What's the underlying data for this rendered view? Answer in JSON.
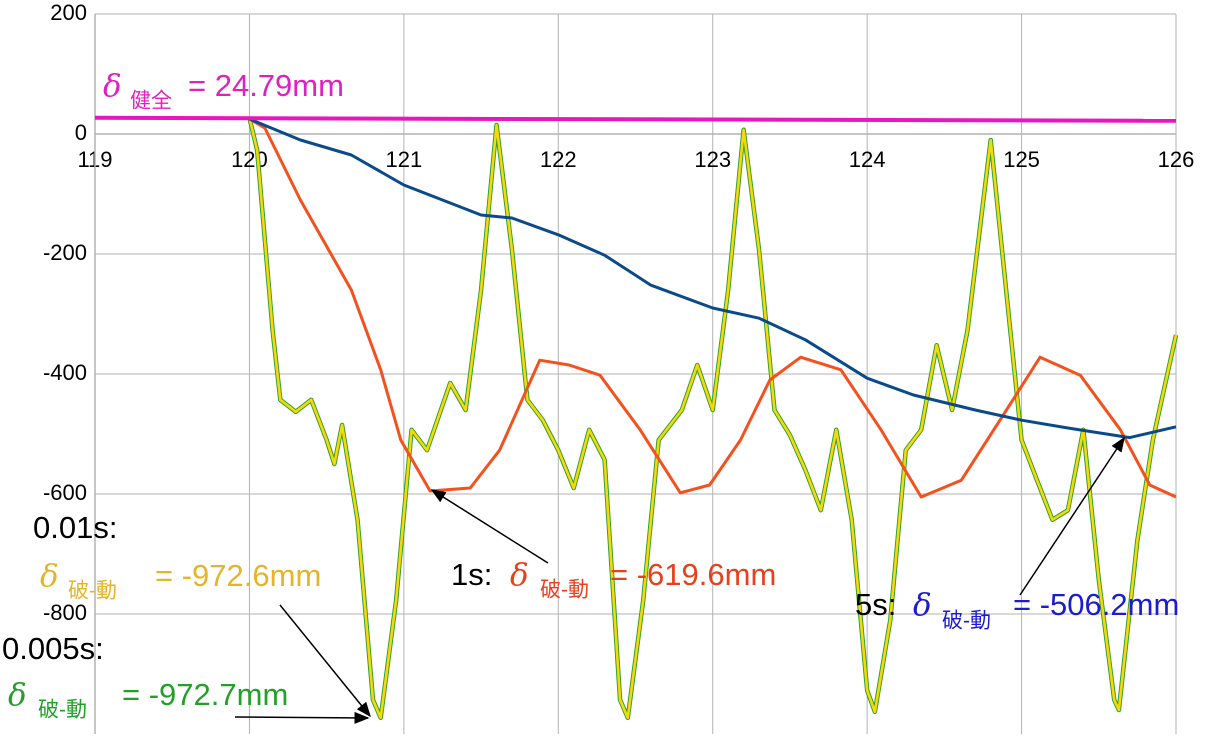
{
  "chart_data": {
    "type": "line",
    "xlim": [
      119,
      126
    ],
    "xticks": [
      119,
      120,
      121,
      122,
      123,
      124,
      125,
      126
    ],
    "ylim": [
      -1000,
      200
    ],
    "yticks": [
      200,
      0,
      -200,
      -400,
      -600,
      -800
    ],
    "grid": true,
    "series": [
      {
        "name": "0.005s:",
        "color": "#2e9e2e",
        "text_color": "#22a02a",
        "annotation": {
          "symbol": "δ",
          "subscript": "破-動",
          "text": "= -972.7mm"
        },
        "x": [
          120,
          120.05,
          120.15,
          120.2,
          120.3,
          120.4,
          120.5,
          120.55,
          120.6,
          120.7,
          120.8,
          120.85,
          120.95,
          121.05,
          121.15,
          121.3,
          121.4,
          121.5,
          121.6,
          121.7,
          121.8,
          121.9,
          122,
          122.1,
          122.2,
          122.3,
          122.4,
          122.45,
          122.55,
          122.65,
          122.8,
          122.9,
          123,
          123.1,
          123.2,
          123.3,
          123.4,
          123.5,
          123.6,
          123.7,
          123.8,
          123.9,
          124,
          124.05,
          124.15,
          124.25,
          124.35,
          124.45,
          124.55,
          124.65,
          124.8,
          124.9,
          125,
          125.1,
          125.2,
          125.3,
          125.4,
          125.5,
          125.6,
          125.63,
          125.75,
          125.85,
          126
        ],
        "values": [
          27,
          -27,
          -327,
          -443,
          -463,
          -443,
          -510,
          -550,
          -485,
          -643,
          -943,
          -973,
          -777,
          -493,
          -527,
          -415,
          -460,
          -260,
          15,
          -193,
          -443,
          -477,
          -527,
          -590,
          -493,
          -543,
          -943,
          -973,
          -777,
          -510,
          -460,
          -385,
          -460,
          -260,
          7,
          -193,
          -460,
          -502,
          -560,
          -627,
          -493,
          -643,
          -927,
          -963,
          -810,
          -527,
          -493,
          -352,
          -460,
          -327,
          -10,
          -260,
          -510,
          -577,
          -643,
          -627,
          -493,
          -743,
          -943,
          -960,
          -677,
          -510,
          -335
        ]
      },
      {
        "name": "0.01s:",
        "color": "#f5d90a",
        "text_color": "#e6b428",
        "annotation": {
          "symbol": "δ",
          "subscript": "破-動",
          "text": "= -972.6mm"
        },
        "x": [
          120,
          120.05,
          120.15,
          120.2,
          120.3,
          120.4,
          120.5,
          120.55,
          120.6,
          120.7,
          120.8,
          120.85,
          120.95,
          121.05,
          121.15,
          121.3,
          121.4,
          121.5,
          121.6,
          121.7,
          121.8,
          121.9,
          122,
          122.1,
          122.2,
          122.3,
          122.4,
          122.45,
          122.55,
          122.65,
          122.8,
          122.9,
          123,
          123.1,
          123.2,
          123.3,
          123.4,
          123.5,
          123.6,
          123.7,
          123.8,
          123.9,
          124,
          124.05,
          124.15,
          124.25,
          124.35,
          124.45,
          124.55,
          124.65,
          124.8,
          124.9,
          125,
          125.1,
          125.2,
          125.3,
          125.4,
          125.5,
          125.6,
          125.63,
          125.75,
          125.85,
          126
        ],
        "values": [
          27,
          -27,
          -327,
          -443,
          -463,
          -443,
          -510,
          -550,
          -485,
          -643,
          -943,
          -973,
          -777,
          -493,
          -527,
          -415,
          -460,
          -260,
          15,
          -193,
          -443,
          -477,
          -527,
          -590,
          -493,
          -543,
          -943,
          -973,
          -777,
          -510,
          -460,
          -385,
          -460,
          -260,
          7,
          -193,
          -460,
          -502,
          -560,
          -627,
          -493,
          -643,
          -927,
          -963,
          -810,
          -527,
          -493,
          -352,
          -460,
          -327,
          -10,
          -260,
          -510,
          -577,
          -643,
          -627,
          -493,
          -743,
          -943,
          -960,
          -677,
          -510,
          -335
        ]
      },
      {
        "name": "1s:",
        "color": "#f4511e",
        "text_color": "#e8401c",
        "annotation": {
          "symbol": "δ",
          "subscript": "破-動",
          "text": "= -619.6mm"
        },
        "x": [
          120,
          120.1,
          120.33,
          120.66,
          120.85,
          120.98,
          121.17,
          121.43,
          121.62,
          121.88,
          122.07,
          122.27,
          122.53,
          122.79,
          122.98,
          123.18,
          123.37,
          123.57,
          123.83,
          124.09,
          124.35,
          124.61,
          124.86,
          125.12,
          125.38,
          125.64,
          125.83,
          126
        ],
        "values": [
          25,
          10,
          -110,
          -260,
          -393,
          -510,
          -595,
          -590,
          -527,
          -377,
          -385,
          -402,
          -493,
          -598,
          -585,
          -510,
          -410,
          -372,
          -393,
          -493,
          -605,
          -577,
          -477,
          -372,
          -402,
          -493,
          -585,
          -605
        ]
      },
      {
        "name": "5s:",
        "color": "#0b4a8a",
        "text_color": "#1c1ccc",
        "annotation": {
          "symbol": "δ",
          "subscript": "破-動",
          "text": "= -506.2mm"
        },
        "x": [
          120,
          120.33,
          120.66,
          121,
          121.5,
          121.7,
          122,
          122.3,
          122.6,
          123,
          123.3,
          123.6,
          124,
          124.3,
          124.7,
          125,
          125.3,
          125.7,
          126
        ],
        "values": [
          25,
          -10,
          -35,
          -85,
          -135,
          -140,
          -168,
          -202,
          -252,
          -290,
          -307,
          -343,
          -407,
          -435,
          -460,
          -477,
          -490,
          -506,
          -488
        ]
      },
      {
        "color": "#e815c0",
        "text_color": "#e020c0",
        "annotation": {
          "symbol": "δ",
          "subscript": "健全",
          "text": "= 24.79mm"
        },
        "x": [
          119,
          126
        ],
        "values": [
          27,
          22
        ]
      }
    ]
  }
}
